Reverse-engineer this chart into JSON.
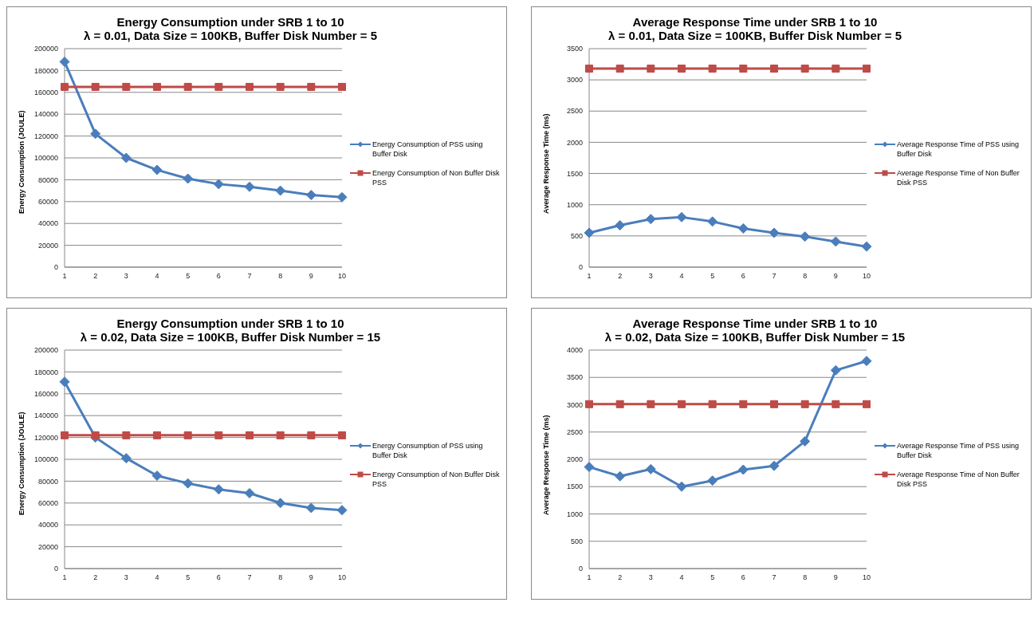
{
  "chart_data": [
    {
      "type": "line",
      "title": "Energy Consumption under SRB 1 to 10",
      "subtitle": "λ = 0.01, Data Size = 100KB, Buffer Disk Number = 5",
      "ylabel": "Energy Consumption (JOULE)",
      "categories": [
        "1",
        "2",
        "3",
        "4",
        "5",
        "6",
        "7",
        "8",
        "9",
        "10"
      ],
      "ylim": [
        0,
        200000
      ],
      "yticks": [
        0,
        20000,
        40000,
        60000,
        80000,
        100000,
        120000,
        140000,
        160000,
        180000,
        200000
      ],
      "grid": "y",
      "legend": "right",
      "series": [
        {
          "name": "Energy Consumption of PSS using Buffer Disk",
          "color": "#4a7ebb",
          "marker": "diamond",
          "values": [
            188000,
            122000,
            100000,
            89000,
            81000,
            76000,
            73500,
            70000,
            66000,
            64000
          ]
        },
        {
          "name": "Energy Consumption of Non Buffer Disk PSS",
          "color": "#be4b48",
          "marker": "square",
          "values": [
            165000,
            165000,
            165000,
            165000,
            165000,
            165000,
            165000,
            165000,
            165000,
            165000
          ]
        }
      ]
    },
    {
      "type": "line",
      "title": "Average Response Time under SRB 1 to 10",
      "subtitle": "λ = 0.01, Data Size = 100KB, Buffer Disk Number = 5",
      "ylabel": "Average Response Time (ms)",
      "categories": [
        "1",
        "2",
        "3",
        "4",
        "5",
        "6",
        "7",
        "8",
        "9",
        "10"
      ],
      "ylim": [
        0,
        3500
      ],
      "yticks": [
        0,
        500,
        1000,
        1500,
        2000,
        2500,
        3000,
        3500
      ],
      "grid": "y",
      "legend": "right",
      "series": [
        {
          "name": "Average Response Time of PSS using Buffer Disk",
          "color": "#4a7ebb",
          "marker": "diamond",
          "values": [
            550,
            670,
            770,
            800,
            730,
            620,
            550,
            490,
            410,
            330
          ]
        },
        {
          "name": "Average Response Time of Non Buffer Disk PSS",
          "color": "#be4b48",
          "marker": "square",
          "values": [
            3180,
            3180,
            3180,
            3180,
            3180,
            3180,
            3180,
            3180,
            3180,
            3180
          ]
        }
      ]
    },
    {
      "type": "line",
      "title": "Energy Consumption under SRB 1 to 10",
      "subtitle": "λ = 0.02, Data Size = 100KB, Buffer Disk Number = 15",
      "ylabel": "Energy Consumption (JOULE)",
      "categories": [
        "1",
        "2",
        "3",
        "4",
        "5",
        "6",
        "7",
        "8",
        "9",
        "10"
      ],
      "ylim": [
        0,
        200000
      ],
      "yticks": [
        0,
        20000,
        40000,
        60000,
        80000,
        100000,
        120000,
        140000,
        160000,
        180000,
        200000
      ],
      "grid": "y",
      "legend": "right",
      "series": [
        {
          "name": "Energy Consumption of PSS using Buffer Disk",
          "color": "#4a7ebb",
          "marker": "diamond",
          "values": [
            171000,
            120000,
            101000,
            85000,
            78000,
            72500,
            69000,
            60000,
            55500,
            53500
          ]
        },
        {
          "name": "Energy Consumption of Non Buffer Disk PSS",
          "color": "#be4b48",
          "marker": "square",
          "values": [
            122000,
            122000,
            122000,
            122000,
            122000,
            122000,
            122000,
            122000,
            122000,
            122000
          ]
        }
      ]
    },
    {
      "type": "line",
      "title": "Average Response Time under SRB 1 to 10",
      "subtitle": "λ = 0.02, Data Size = 100KB, Buffer Disk Number = 15",
      "ylabel": "Average Response Time (ms)",
      "categories": [
        "1",
        "2",
        "3",
        "4",
        "5",
        "6",
        "7",
        "8",
        "9",
        "10"
      ],
      "ylim": [
        0,
        4000
      ],
      "yticks": [
        0,
        500,
        1000,
        1500,
        2000,
        2500,
        3000,
        3500,
        4000
      ],
      "grid": "y",
      "legend": "right",
      "series": [
        {
          "name": "Average Response Time of PSS using Buffer Disk",
          "color": "#4a7ebb",
          "marker": "diamond",
          "values": [
            1860,
            1690,
            1820,
            1500,
            1610,
            1810,
            1880,
            2330,
            3630,
            3800
          ]
        },
        {
          "name": "Average Response Time of Non Buffer Disk PSS",
          "color": "#be4b48",
          "marker": "square",
          "values": [
            3010,
            3010,
            3010,
            3010,
            3010,
            3010,
            3010,
            3010,
            3010,
            3010
          ]
        }
      ]
    }
  ]
}
